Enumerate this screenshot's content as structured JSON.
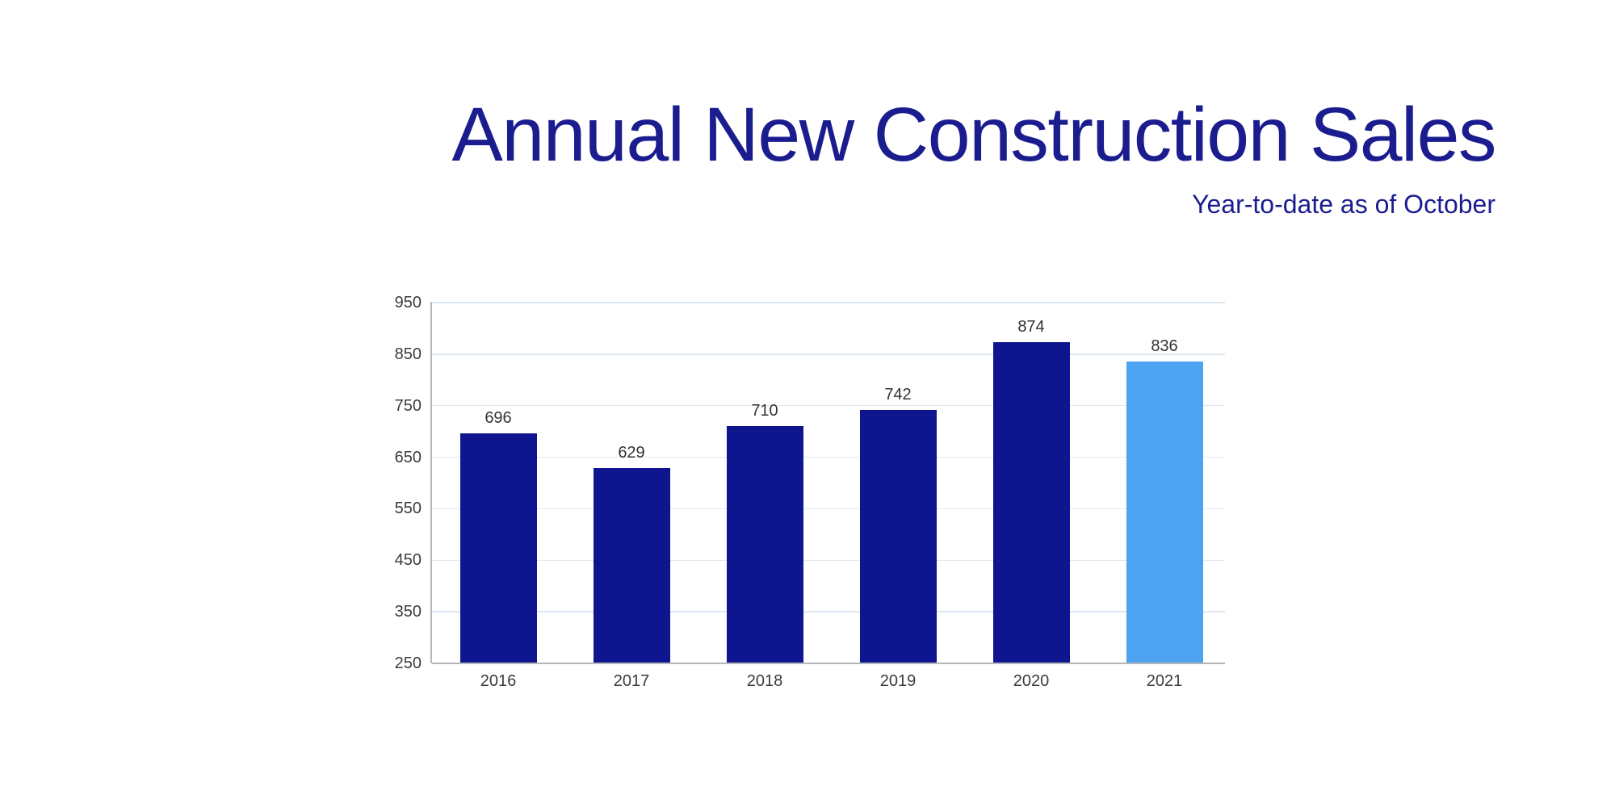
{
  "header": {
    "title": "Annual New Construction Sales",
    "subtitle": "Year-to-date as of October"
  },
  "chart_data": {
    "type": "bar",
    "title": "Annual New Construction Sales",
    "subtitle": "Year-to-date as of October",
    "categories": [
      "2016",
      "2017",
      "2018",
      "2019",
      "2020",
      "2021"
    ],
    "values": [
      696,
      629,
      710,
      742,
      874,
      836
    ],
    "bar_colors": [
      "#0f148f",
      "#0f148f",
      "#0f148f",
      "#0f148f",
      "#0f148f",
      "#4da2f2"
    ],
    "yticks": [
      250,
      350,
      450,
      550,
      650,
      750,
      850,
      950
    ],
    "ylim": [
      250,
      950
    ],
    "grid": true,
    "legend": "none",
    "value_labels": true,
    "highlighted_category": "2021"
  },
  "colors": {
    "background": "#ffffff",
    "title": "#1b1d8f",
    "bar_default": "#0f148f",
    "bar_highlight": "#4da2f2",
    "tick_text": "#3c3c3c",
    "value_text": "#333333",
    "gridline": "#dfe8f1",
    "axis": "#b4b7b9"
  }
}
